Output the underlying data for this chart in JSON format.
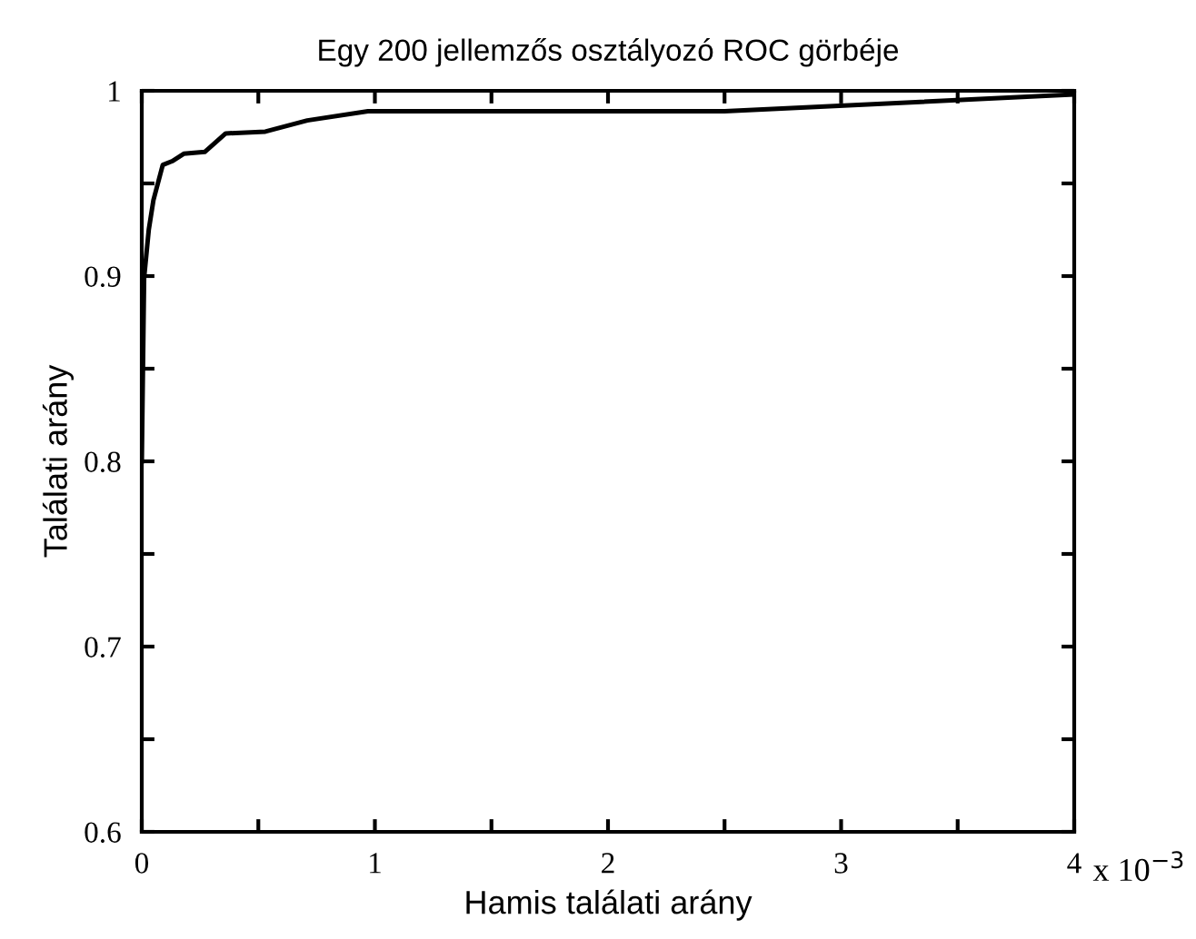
{
  "chart_data": {
    "type": "line",
    "title": "Egy 200 jellemzős osztályozó ROC görbéje",
    "xlabel": "Hamis találati arány",
    "ylabel": "Találati arány",
    "annotations": [
      "x 10$^{−3}$"
    ],
    "series": [
      {
        "color": "#000000",
        "x": [
          0,
          0.01,
          0.03,
          0.05,
          0.09,
          0.13,
          0.18,
          0.27,
          0.36,
          0.53,
          0.71,
          0.97,
          2.5,
          4
        ],
        "values": [
          0.8,
          0.899,
          0.925,
          0.941,
          0.96,
          0.962,
          0.966,
          0.967,
          0.977,
          0.978,
          0.984,
          0.989,
          0.989,
          0.998
        ]
      }
    ],
    "xlim": [
      0,
      4
    ],
    "ylim": [
      0.6,
      1
    ],
    "xticks": [
      0,
      {
        "value": 0.5,
        "label": null
      },
      1,
      {
        "value": 1.5,
        "label": null
      },
      2,
      {
        "value": 2.5,
        "label": null
      },
      3,
      {
        "value": 3.5,
        "label": null
      },
      4
    ],
    "yticks": [
      0.6,
      {
        "value": 0.65,
        "label": null
      },
      0.7,
      {
        "value": 0.75,
        "label": null
      },
      0.8,
      {
        "value": 0.85,
        "label": null
      },
      0.9,
      {
        "value": 0.95,
        "label": null
      },
      1
    ],
    "grid": false,
    "legend": false,
    "marker": "none",
    "line_style": "solid"
  }
}
